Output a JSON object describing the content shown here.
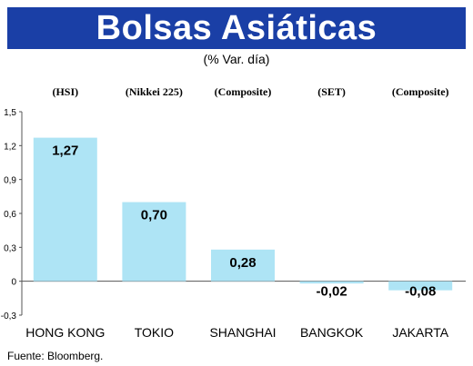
{
  "header": {
    "title": "Bolsas Asiáticas",
    "subtitle": "(% Var. día)"
  },
  "source": "Fuente: Bloomberg.",
  "colors": {
    "title_bg": "#1a3fa6",
    "bar": "#aee4f5",
    "axis": "#555555"
  },
  "chart_data": {
    "type": "bar",
    "categories": [
      "HONG KONG",
      "TOKIO",
      "SHANGHAI",
      "BANGKOK",
      "JAKARTA"
    ],
    "index_names": [
      "(HSI)",
      "(Nikkei 225)",
      "(Composite)",
      "(SET)",
      "(Composite)"
    ],
    "values": [
      1.27,
      0.7,
      0.28,
      -0.02,
      -0.08
    ],
    "value_labels": [
      "1,27",
      "0,70",
      "0,28",
      "-0,02",
      "-0,08"
    ],
    "yticks": [
      1.5,
      1.2,
      0.9,
      0.6,
      0.3,
      0,
      -0.3
    ],
    "ytick_labels": [
      "1,5",
      "1,2",
      "0,9",
      "0,6",
      "0,3",
      "0",
      "-0,3"
    ],
    "ylim": [
      -0.3,
      1.5
    ],
    "grid": false,
    "title": "Bolsas Asiáticas",
    "xlabel": "",
    "ylabel": ""
  }
}
